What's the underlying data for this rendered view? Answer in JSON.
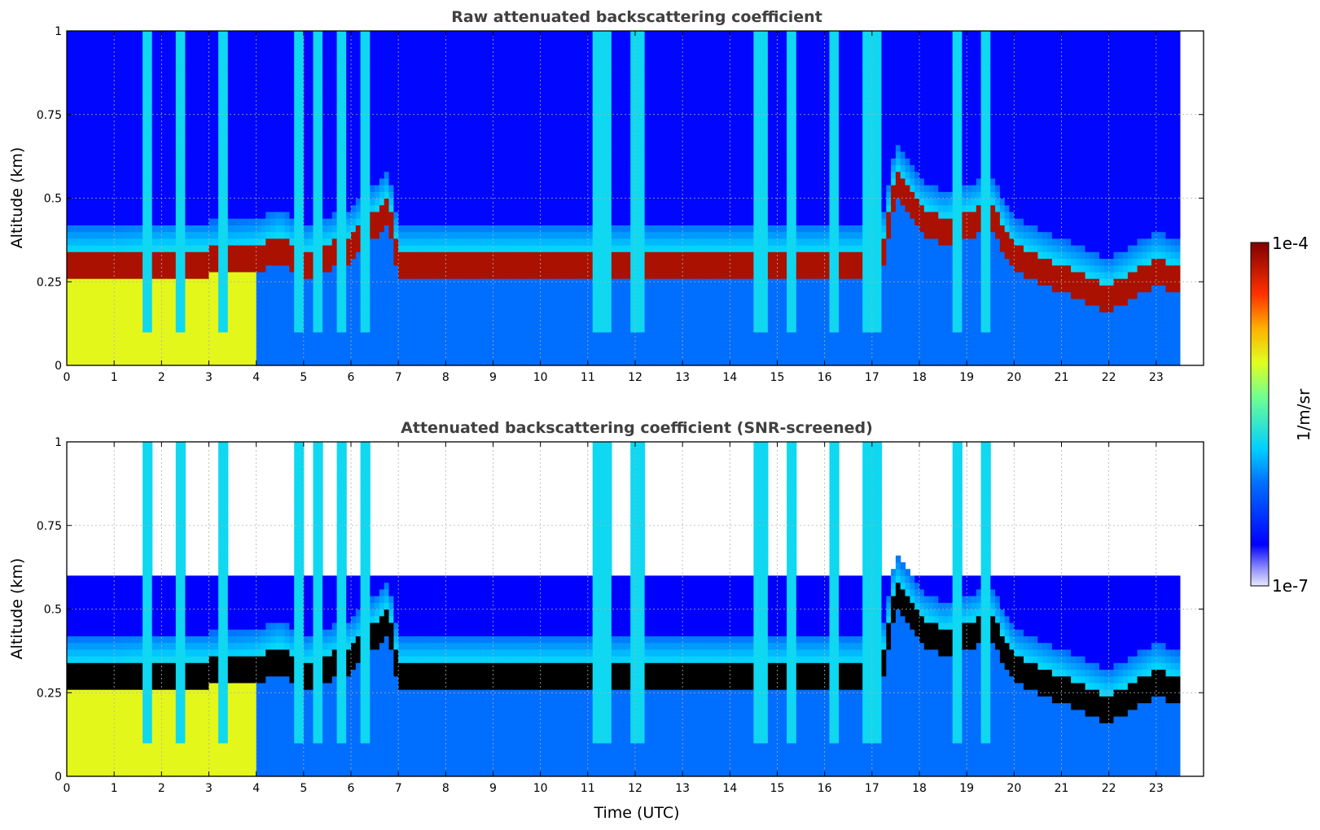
{
  "figure": {
    "colorbar": {
      "label": "1/m/sr",
      "max_label": "1e-4",
      "min_label": "1e-7",
      "range": [
        1e-07,
        0.0001
      ],
      "scale": "log",
      "colormap": "jet"
    },
    "xlabel": "Time (UTC)"
  },
  "chart_data": [
    {
      "type": "heatmap",
      "name": "raw",
      "title": "Raw attenuated backscattering coefficient",
      "ylabel": "Altitude (km)",
      "xlim": [
        0,
        24
      ],
      "ylim": [
        0,
        1
      ],
      "x_ticks": [
        0,
        1,
        2,
        3,
        4,
        5,
        6,
        7,
        8,
        9,
        10,
        11,
        12,
        13,
        14,
        15,
        16,
        17,
        18,
        19,
        20,
        21,
        22,
        23
      ],
      "x_tick_labels": [
        "0",
        "1",
        "2",
        "3",
        "4",
        "5",
        "6",
        "7",
        "8",
        "9",
        "10",
        "11",
        "12",
        "13",
        "14",
        "15",
        "16",
        "17",
        "18",
        "19",
        "20",
        "21",
        "22",
        "23"
      ],
      "y_ticks": [
        0,
        0.25,
        0.5,
        0.75,
        1
      ],
      "y_tick_labels": [
        "0",
        "0.25",
        "0.5",
        "0.75",
        "1"
      ],
      "grid": true,
      "data_end_time": 23.5,
      "boundary_layer_top_km": [
        [
          0,
          0.3
        ],
        [
          1,
          0.3
        ],
        [
          2,
          0.31
        ],
        [
          3,
          0.31
        ],
        [
          4,
          0.32
        ],
        [
          4.5,
          0.35
        ],
        [
          5,
          0.3
        ],
        [
          6,
          0.35
        ],
        [
          6.5,
          0.42
        ],
        [
          6.8,
          0.47
        ],
        [
          7,
          0.3
        ],
        [
          17.2,
          0.3
        ],
        [
          17.5,
          0.55
        ],
        [
          18,
          0.44
        ],
        [
          18.5,
          0.4
        ],
        [
          19,
          0.42
        ],
        [
          19.5,
          0.45
        ],
        [
          20,
          0.32
        ],
        [
          21,
          0.26
        ],
        [
          22,
          0.2
        ],
        [
          23,
          0.28
        ],
        [
          23.5,
          0.25
        ]
      ],
      "cloud_columns_utc": [
        1.7,
        2.4,
        3.3,
        4.9,
        5.3,
        5.8,
        6.3,
        11.2,
        11.4,
        12.0,
        12.1,
        14.6,
        14.7,
        15.3,
        16.2,
        16.9,
        17.1,
        18.8,
        19.4
      ],
      "noise_floor_km": 0.25
    },
    {
      "type": "heatmap",
      "name": "snr_screened",
      "title": "Attenuated backscattering coefficient (SNR-screened)",
      "ylabel": "Altitude (km)",
      "xlim": [
        0,
        24
      ],
      "ylim": [
        0,
        1
      ],
      "x_ticks": [
        0,
        1,
        2,
        3,
        4,
        5,
        6,
        7,
        8,
        9,
        10,
        11,
        12,
        13,
        14,
        15,
        16,
        17,
        18,
        19,
        20,
        21,
        22,
        23
      ],
      "x_tick_labels": [
        "0",
        "1",
        "2",
        "3",
        "4",
        "5",
        "6",
        "7",
        "8",
        "9",
        "10",
        "11",
        "12",
        "13",
        "14",
        "15",
        "16",
        "17",
        "18",
        "19",
        "20",
        "21",
        "22",
        "23"
      ],
      "y_ticks": [
        0,
        0.25,
        0.5,
        0.75,
        1
      ],
      "y_tick_labels": [
        "0",
        "0.25",
        "0.5",
        "0.75",
        "1"
      ],
      "grid": true,
      "data_end_time": 23.5,
      "saturated_color": "#000000",
      "boundary_layer_top_km": [
        [
          0,
          0.3
        ],
        [
          1,
          0.3
        ],
        [
          2,
          0.31
        ],
        [
          3,
          0.31
        ],
        [
          4,
          0.32
        ],
        [
          4.5,
          0.35
        ],
        [
          5,
          0.3
        ],
        [
          6,
          0.35
        ],
        [
          6.5,
          0.42
        ],
        [
          6.8,
          0.47
        ],
        [
          7,
          0.3
        ],
        [
          17.2,
          0.3
        ],
        [
          17.5,
          0.55
        ],
        [
          18,
          0.44
        ],
        [
          18.5,
          0.4
        ],
        [
          19,
          0.42
        ],
        [
          19.5,
          0.45
        ],
        [
          20,
          0.32
        ],
        [
          21,
          0.26
        ],
        [
          22,
          0.2
        ],
        [
          23,
          0.28
        ],
        [
          23.5,
          0.25
        ]
      ],
      "cloud_columns_utc": [
        1.7,
        2.4,
        3.3,
        4.9,
        5.3,
        5.8,
        6.3,
        11.2,
        11.4,
        12.0,
        12.1,
        14.6,
        14.7,
        15.3,
        16.2,
        16.9,
        17.1,
        18.8,
        19.4
      ],
      "noise_floor_km": 0.25
    }
  ]
}
